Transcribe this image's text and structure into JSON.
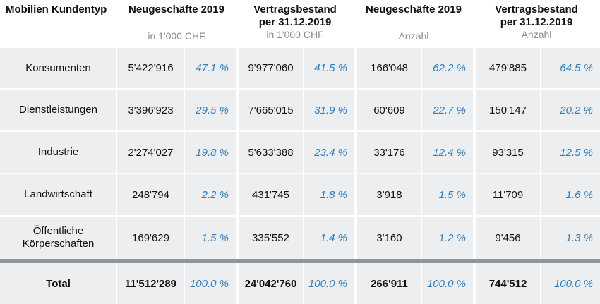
{
  "headers": {
    "kundentyp": "Mobilien Kundentyp",
    "groups": [
      {
        "title": "Neugeschäfte 2019",
        "title2": "",
        "unit": "in 1'000 CHF"
      },
      {
        "title": "Vertragsbestand",
        "title2": "per 31.12.2019",
        "unit": "in 1'000 CHF"
      },
      {
        "title": "Neugeschäfte 2019",
        "title2": "",
        "unit": "Anzahl"
      },
      {
        "title": "Vertragsbestand",
        "title2": "per 31.12.2019",
        "unit": "Anzahl"
      }
    ]
  },
  "rows": [
    {
      "label": "Konsumenten",
      "label2": "",
      "values": [
        "5'422'916",
        "47.1 %",
        "9'977'060",
        "41.5 %",
        "166'048",
        "62.2 %",
        "479'885",
        "64.5 %"
      ]
    },
    {
      "label": "Dienstleistungen",
      "label2": "",
      "values": [
        "3'396'923",
        "29.5 %",
        "7'665'015",
        "31.9 %",
        "60'609",
        "22.7 %",
        "150'147",
        "20.2 %"
      ]
    },
    {
      "label": "Industrie",
      "label2": "",
      "values": [
        "2'274'027",
        "19.8 %",
        "5'633'388",
        "23.4 %",
        "33'176",
        "12.4 %",
        "93'315",
        "12.5 %"
      ]
    },
    {
      "label": "Landwirtschaft",
      "label2": "",
      "values": [
        "248'794",
        "2.2 %",
        "431'745",
        "1.8 %",
        "3'918",
        "1.5 %",
        "11'709",
        "1.6 %"
      ]
    },
    {
      "label": "Öffentliche",
      "label2": "Körperschaften",
      "values": [
        "169'629",
        "1.5 %",
        "335'552",
        "1.4 %",
        "3'160",
        "1.2 %",
        "9'456",
        "1.3 %"
      ]
    }
  ],
  "total": {
    "label": "Total",
    "values": [
      "11'512'289",
      "100.0 %",
      "24'042'760",
      "100.0 %",
      "266'911",
      "100.0 %",
      "744'512",
      "100.0 %"
    ]
  },
  "colors": {
    "cell_bg": "#eceef0",
    "percent": "#2e7fbd",
    "separator": "#8d959d",
    "unit": "#8c8c8c"
  }
}
